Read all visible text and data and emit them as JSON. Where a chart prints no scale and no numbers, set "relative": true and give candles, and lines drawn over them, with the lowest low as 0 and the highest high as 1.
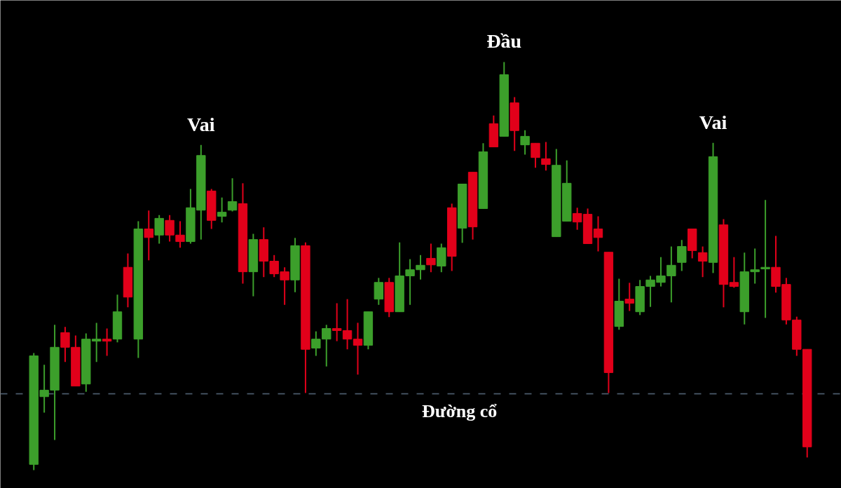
{
  "chart_data": {
    "type": "candlestick",
    "relative": true,
    "categories": [
      null,
      null,
      null,
      null,
      null,
      null,
      null,
      null,
      null,
      null,
      null,
      null,
      null,
      null,
      null,
      null,
      null,
      null,
      null,
      null,
      null,
      null,
      null,
      null,
      null,
      null,
      null,
      null,
      null,
      null,
      null,
      null,
      null,
      null,
      null,
      null,
      null,
      null,
      null,
      null,
      null,
      null,
      null,
      null,
      null,
      null,
      null,
      null,
      null,
      null,
      null,
      null,
      null,
      null,
      null,
      null,
      null,
      null,
      null,
      null,
      null,
      null,
      null,
      null,
      null,
      null,
      null,
      null,
      null,
      null,
      null,
      null,
      null,
      null,
      null
    ],
    "ohlc": [
      [
        0.014,
        0.287,
        0,
        0.28
      ],
      [
        0.18,
        0.258,
        0.141,
        0.196
      ],
      [
        0.196,
        0.356,
        0.074,
        0.301
      ],
      [
        0.337,
        0.351,
        0.265,
        0.301
      ],
      [
        0.301,
        0.33,
        0.206,
        0.206
      ],
      [
        0.211,
        0.335,
        0.192,
        0.321
      ],
      [
        0.316,
        0.361,
        0.265,
        0.321
      ],
      [
        0.321,
        0.347,
        0.28,
        0.316
      ],
      [
        0.321,
        0.43,
        0.313,
        0.388
      ],
      [
        0.497,
        0.531,
        0.399,
        0.424
      ],
      [
        0.321,
        0.61,
        0.275,
        0.591
      ],
      [
        0.591,
        0.636,
        0.514,
        0.57
      ],
      [
        0.576,
        0.625,
        0.555,
        0.617
      ],
      [
        0.612,
        0.625,
        0.56,
        0.576
      ],
      [
        0.576,
        0.61,
        0.545,
        0.56
      ],
      [
        0.56,
        0.689,
        0.555,
        0.643
      ],
      [
        0.637,
        0.797,
        0.565,
        0.771
      ],
      [
        0.684,
        0.689,
        0.591,
        0.612
      ],
      [
        0.622,
        0.668,
        0.607,
        0.632
      ],
      [
        0.637,
        0.715,
        0.634,
        0.658
      ],
      [
        0.653,
        0.703,
        0.457,
        0.486
      ],
      [
        0.486,
        0.579,
        0.426,
        0.565
      ],
      [
        0.565,
        0.595,
        0.473,
        0.512
      ],
      [
        0.512,
        0.527,
        0.473,
        0.481
      ],
      [
        0.486,
        0.497,
        0.405,
        0.466
      ],
      [
        0.466,
        0.569,
        0.436,
        0.55
      ],
      [
        0.55,
        0.558,
        0.189,
        0.296
      ],
      [
        0.299,
        0.34,
        0.28,
        0.321
      ],
      [
        0.321,
        0.356,
        0.254,
        0.347
      ],
      [
        0.347,
        0.409,
        0.316,
        0.342
      ],
      [
        0.342,
        0.419,
        0.296,
        0.321
      ],
      [
        0.321,
        0.361,
        0.234,
        0.306
      ],
      [
        0.306,
        0.388,
        0.296,
        0.388
      ],
      [
        0.419,
        0.471,
        0.405,
        0.46
      ],
      [
        0.46,
        0.471,
        0.375,
        0.388
      ],
      [
        0.388,
        0.558,
        0.388,
        0.476
      ],
      [
        0.476,
        0.517,
        0.405,
        0.491
      ],
      [
        0.491,
        0.527,
        0.467,
        0.502
      ],
      [
        0.519,
        0.555,
        0.485,
        0.503
      ],
      [
        0.5,
        0.555,
        0.485,
        0.545
      ],
      [
        0.643,
        0.653,
        0.488,
        0.524
      ],
      [
        0.593,
        0.701,
        0.557,
        0.701
      ],
      [
        0.73,
        0.73,
        0.565,
        0.596
      ],
      [
        0.641,
        0.801,
        0.641,
        0.78
      ],
      [
        0.849,
        0.869,
        0.792,
        0.792
      ],
      [
        0.818,
        1,
        0.818,
        0.969
      ],
      [
        0.9,
        0.914,
        0.782,
        0.832
      ],
      [
        0.797,
        0.833,
        0.773,
        0.818
      ],
      [
        0.801,
        0.801,
        0.741,
        0.766
      ],
      [
        0.763,
        0.804,
        0.734,
        0.749
      ],
      [
        0.572,
        0.787,
        0.572,
        0.747
      ],
      [
        0.61,
        0.759,
        0.61,
        0.703
      ],
      [
        0.629,
        0.643,
        0.589,
        0.608
      ],
      [
        0.627,
        0.641,
        0.555,
        0.555
      ],
      [
        0.591,
        0.622,
        0.536,
        0.57
      ],
      [
        0.534,
        0.534,
        0.189,
        0.239
      ],
      [
        0.352,
        0.469,
        0.344,
        0.414
      ],
      [
        0.419,
        0.459,
        0.39,
        0.409
      ],
      [
        0.388,
        0.466,
        0.38,
        0.45
      ],
      [
        0.45,
        0.476,
        0.4,
        0.466
      ],
      [
        0.46,
        0.522,
        0.45,
        0.476
      ],
      [
        0.476,
        0.548,
        0.411,
        0.502
      ],
      [
        0.509,
        0.564,
        0.488,
        0.548
      ],
      [
        0.591,
        0.591,
        0.519,
        0.538
      ],
      [
        0.533,
        0.548,
        0.473,
        0.512
      ],
      [
        0.509,
        0.802,
        0.483,
        0.768
      ],
      [
        0.601,
        0.615,
        0.399,
        0.455
      ],
      [
        0.46,
        0.522,
        0.447,
        0.45
      ],
      [
        0.388,
        0.533,
        0.357,
        0.486
      ],
      [
        0.486,
        0.543,
        0.457,
        0.491
      ],
      [
        0.493,
        0.662,
        0.373,
        0.497
      ],
      [
        0.497,
        0.574,
        0.435,
        0.45
      ],
      [
        0.455,
        0.471,
        0.357,
        0.368
      ],
      [
        0.368,
        0.376,
        0.28,
        0.296
      ],
      [
        0.296,
        0.296,
        0.031,
        0.057
      ]
    ],
    "colors": [
      "#3c9f2b",
      "#3c9f2b",
      "#3c9f2b",
      "#e2001a",
      "#e2001a",
      "#3c9f2b",
      "#3c9f2b",
      "#e2001a",
      "#3c9f2b",
      "#e2001a",
      "#3c9f2b",
      "#e2001a",
      "#3c9f2b",
      "#e2001a",
      "#e2001a",
      "#3c9f2b",
      "#3c9f2b",
      "#e2001a",
      "#3c9f2b",
      "#3c9f2b",
      "#e2001a",
      "#3c9f2b",
      "#e2001a",
      "#e2001a",
      "#e2001a",
      "#3c9f2b",
      "#e2001a",
      "#3c9f2b",
      "#3c9f2b",
      "#e2001a",
      "#e2001a",
      "#e2001a",
      "#3c9f2b",
      "#3c9f2b",
      "#e2001a",
      "#3c9f2b",
      "#3c9f2b",
      "#3c9f2b",
      "#e2001a",
      "#3c9f2b",
      "#e2001a",
      "#3c9f2b",
      "#e2001a",
      "#3c9f2b",
      "#e2001a",
      "#3c9f2b",
      "#e2001a",
      "#3c9f2b",
      "#e2001a",
      "#e2001a",
      "#3c9f2b",
      "#3c9f2b",
      "#e2001a",
      "#e2001a",
      "#e2001a",
      "#e2001a",
      "#3c9f2b",
      "#e2001a",
      "#3c9f2b",
      "#3c9f2b",
      "#3c9f2b",
      "#3c9f2b",
      "#3c9f2b",
      "#e2001a",
      "#e2001a",
      "#3c9f2b",
      "#e2001a",
      "#e2001a",
      "#3c9f2b",
      "#3c9f2b",
      "#3c9f2b",
      "#e2001a",
      "#e2001a",
      "#e2001a",
      "#e2001a"
    ],
    "annotations": [
      {
        "text": "Vai",
        "y": 0.797
      },
      {
        "text": "Đầu",
        "y": 1
      },
      {
        "text": "Vai",
        "y": 0.802
      }
    ],
    "ref_lines": [
      {
        "axis": "y",
        "value": 0.187,
        "label": "Đường cổ",
        "color": "#4b5a6b",
        "line_style": "dashed"
      }
    ]
  }
}
